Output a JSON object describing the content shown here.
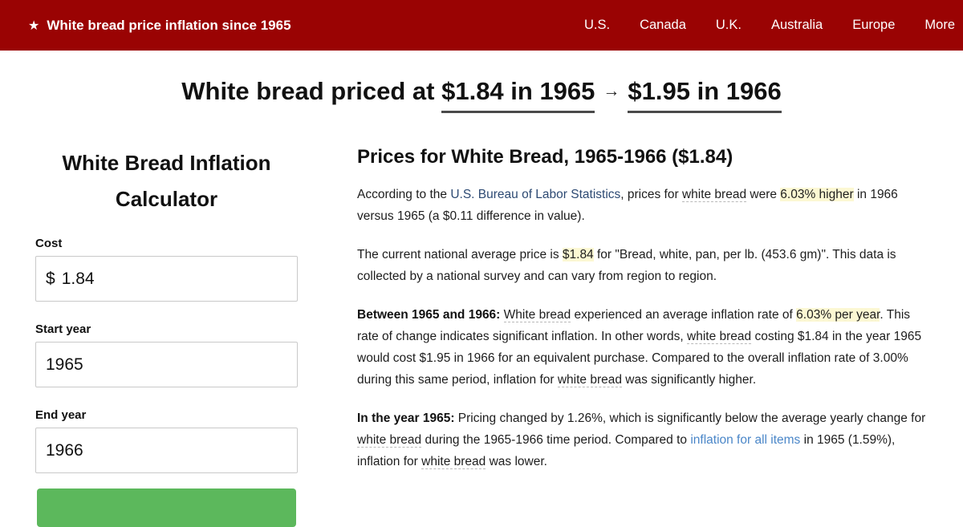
{
  "header": {
    "brand": {
      "star_icon": "★",
      "title": "White bread price inflation since 1965"
    },
    "nav": [
      {
        "label": "U.S."
      },
      {
        "label": "Canada"
      },
      {
        "label": "U.K."
      },
      {
        "label": "Australia"
      },
      {
        "label": "Europe"
      },
      {
        "label": "More"
      }
    ]
  },
  "headline": {
    "prefix": "White bread priced at ",
    "from": "$1.84 in 1965",
    "arrow": "→",
    "to": "$1.95 in 1966"
  },
  "calculator": {
    "title": "White Bread Inflation Calculator",
    "cost_label": "Cost",
    "currency_symbol": "$",
    "cost_value": "1.84",
    "start_year_label": "Start year",
    "start_year_value": "1965",
    "end_year_label": "End year",
    "end_year_value": "1966"
  },
  "article": {
    "heading": "Prices for White Bread, 1965-1966 ($1.84)",
    "p1": {
      "s1": "According to the ",
      "bls_link": "U.S. Bureau of Labor Statistics",
      "s2": ", prices for ",
      "term1": "white bread",
      "s3": " were ",
      "hl1": "6.03% higher",
      "s4": " in 1966 versus 1965 (a $0.11 difference in value)."
    },
    "p2": {
      "s1": "The current national average price is ",
      "hl1": "$1.84",
      "s2": " for \"Bread, white, pan, per lb. (453.6 gm)\". This data is collected by a national survey and can vary from region to region."
    },
    "p3": {
      "bold1": "Between 1965 and 1966: ",
      "term1": "White bread",
      "s1": " experienced an average inflation rate of ",
      "hl1": "6.03% per year",
      "s2": ". This rate of change indicates significant inflation. In other words, ",
      "term2": "white bread",
      "s3": " costing $1.84 in the year 1965 would cost $1.95 in 1966 for an equivalent purchase. Compared to the overall inflation rate of 3.00% during this same period, inflation for ",
      "term3": "white bread",
      "s4": " was significantly higher."
    },
    "p4": {
      "bold1": "In the year 1965: ",
      "s1": "Pricing changed by 1.26%, which is significantly below the average yearly change for ",
      "term1": "white bread",
      "s2": " during the 1965-1966 time period. Compared to ",
      "all_items_link": "inflation for all items",
      "s3": " in 1965 (1.59%), inflation for ",
      "term2": "white bread",
      "s4": " was lower."
    }
  },
  "colors": {
    "header_red": "#9a0303",
    "button_green": "#5cb85c",
    "highlight_yellow": "#fcf8d3",
    "link_dark_blue": "#2d4a73",
    "link_light_blue": "#4a86c8",
    "underline_gray": "#4a4a4a"
  }
}
